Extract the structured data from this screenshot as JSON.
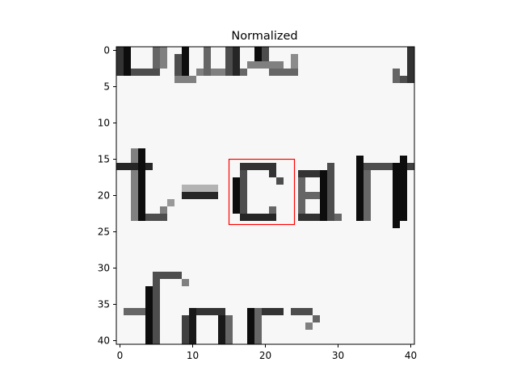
{
  "chart_data": {
    "type": "heatmap",
    "title": "Normalized",
    "xlabel": "",
    "ylabel": "",
    "x_range": [
      -0.5,
      40.5
    ],
    "y_range": [
      40.5,
      -0.5
    ],
    "x_ticks": [
      0,
      10,
      20,
      30,
      40
    ],
    "y_ticks": [
      0,
      5,
      10,
      15,
      20,
      25,
      30,
      35,
      40
    ],
    "colormap": "gray",
    "grid": false,
    "image_description_tokens": [
      "...",
      "-car",
      "for"
    ],
    "highlight_box": {
      "color": "#ff0000",
      "x0": 15,
      "x1": 24,
      "y0": 15,
      "y1": 24
    }
  }
}
